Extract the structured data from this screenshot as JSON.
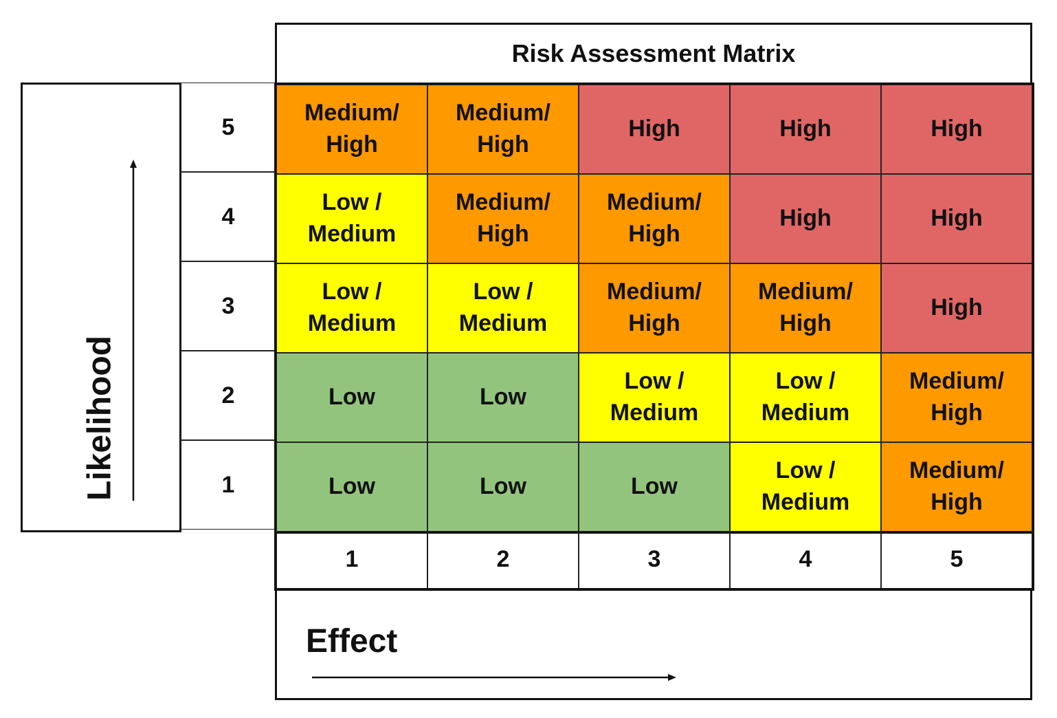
{
  "title": "Risk Assessment Matrix",
  "y_axis_label": "Likelihood",
  "x_axis_label": "Effect",
  "row_labels": [
    "5",
    "4",
    "3",
    "2",
    "1"
  ],
  "col_labels": [
    "1",
    "2",
    "3",
    "4",
    "5"
  ],
  "levels": {
    "low": {
      "text": "Low",
      "color": "#93c47d"
    },
    "low_medium": {
      "text": "Low / Medium",
      "color": "#ffff00"
    },
    "medium_high": {
      "text": "Medium/ High",
      "color": "#ff9900"
    },
    "high": {
      "text": "High",
      "color": "#e06666"
    }
  },
  "rows": [
    {
      "likelihood": "5",
      "cells": [
        "Medium/ High",
        "Medium/ High",
        "High",
        "High",
        "High"
      ]
    },
    {
      "likelihood": "4",
      "cells": [
        "Low / Medium",
        "Medium/ High",
        "Medium/ High",
        "High",
        "High"
      ]
    },
    {
      "likelihood": "3",
      "cells": [
        "Low / Medium",
        "Low / Medium",
        "Medium/ High",
        "Medium/ High",
        "High"
      ]
    },
    {
      "likelihood": "2",
      "cells": [
        "Low",
        "Low",
        "Low / Medium",
        "Low / Medium",
        "Medium/ High"
      ]
    },
    {
      "likelihood": "1",
      "cells": [
        "Low",
        "Low",
        "Low",
        "Low / Medium",
        "Medium/ High"
      ]
    }
  ]
}
